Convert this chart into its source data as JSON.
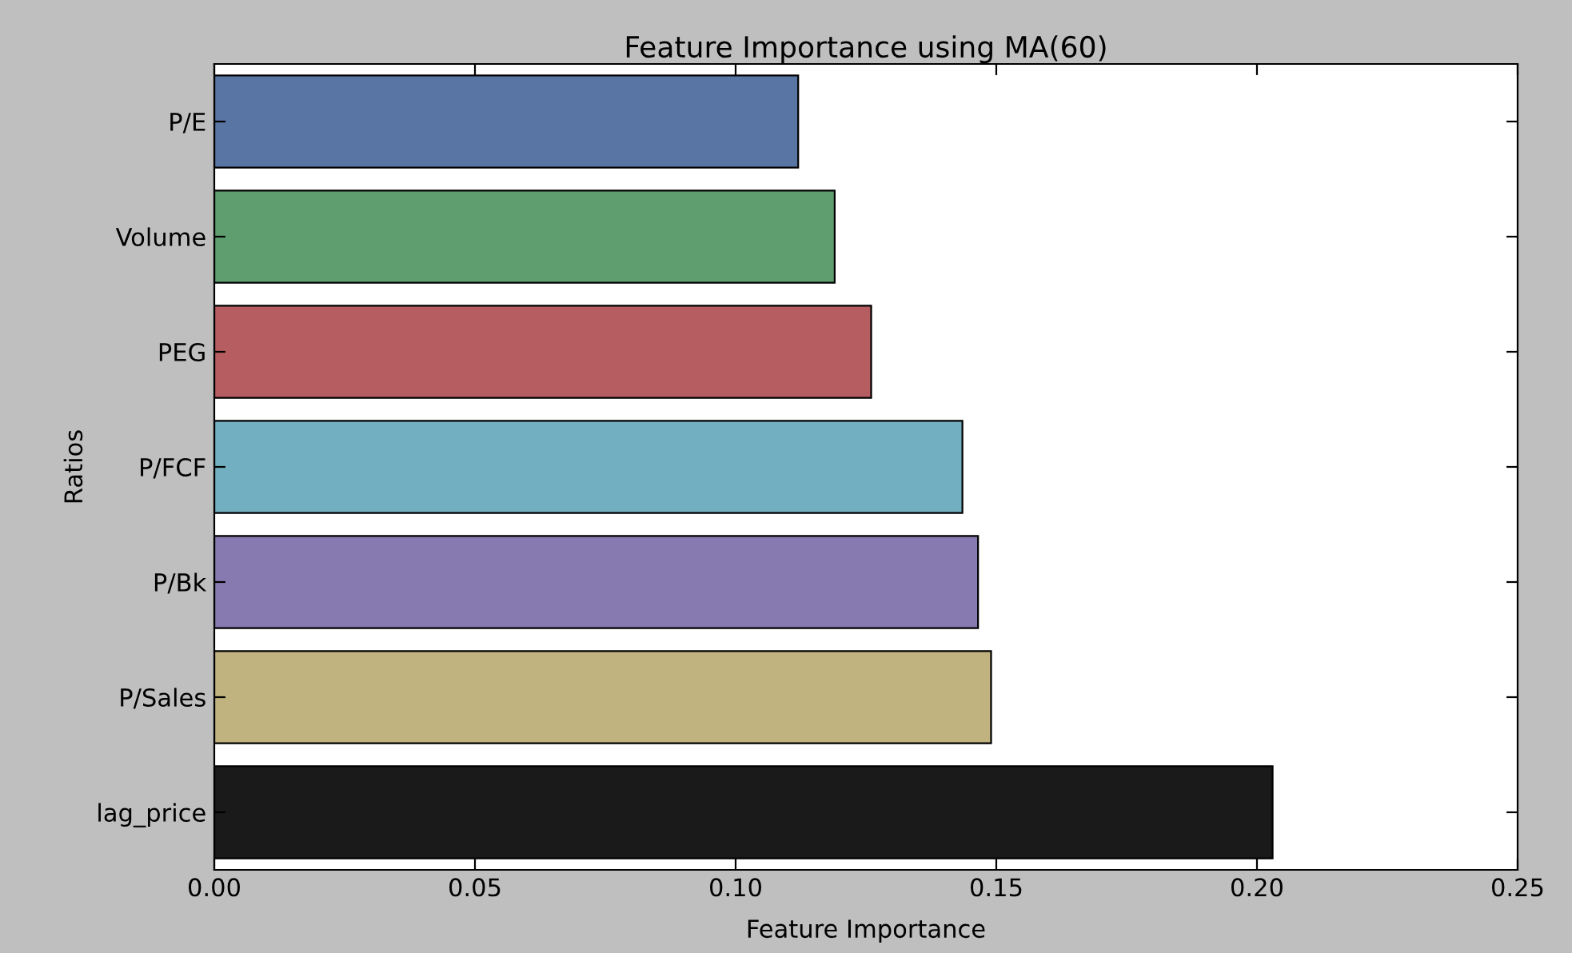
{
  "chart_data": {
    "type": "bar",
    "orientation": "horizontal",
    "title": "Feature Importance using MA(60)",
    "xlabel": "Feature Importance",
    "ylabel": "Ratios",
    "categories": [
      "P/E",
      "Volume",
      "PEG",
      "P/FCF",
      "P/Bk",
      "P/Sales",
      "lag_price"
    ],
    "values": [
      0.112,
      0.119,
      0.126,
      0.1435,
      0.1465,
      0.149,
      0.203
    ],
    "colors": [
      "#5875a4",
      "#5f9e6e",
      "#b55d60",
      "#72afc0",
      "#877ab0",
      "#c1b37f",
      "#1a1a1a"
    ],
    "xlim": [
      0,
      0.25
    ],
    "xticks": [
      {
        "value": 0,
        "label": "0.00"
      },
      {
        "value": 0.05,
        "label": "0.05"
      },
      {
        "value": 0.1,
        "label": "0.10"
      },
      {
        "value": 0.15,
        "label": "0.15"
      },
      {
        "value": 0.2,
        "label": "0.20"
      },
      {
        "value": 0.25,
        "label": "0.25"
      }
    ],
    "grid": false
  }
}
